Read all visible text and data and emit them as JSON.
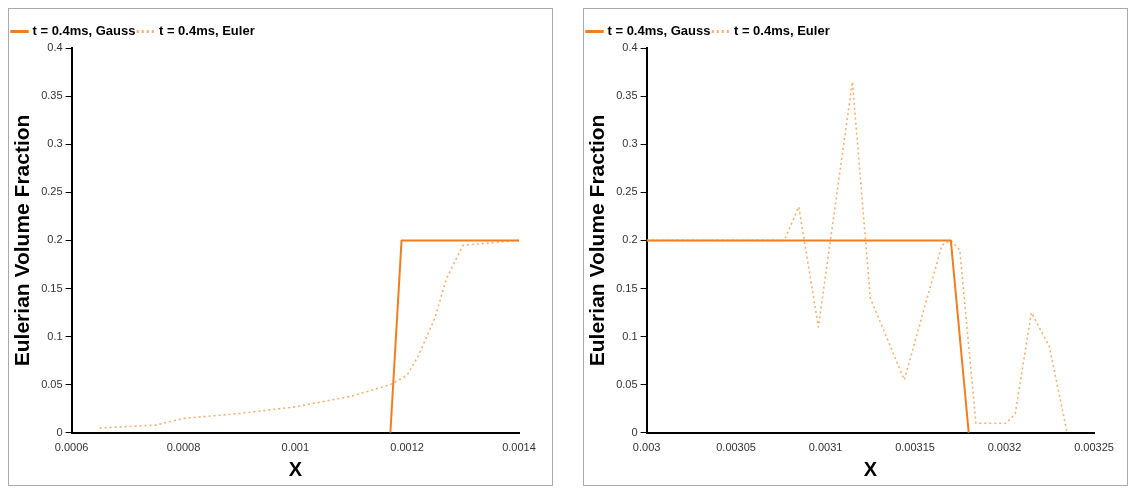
{
  "chart_data": [
    {
      "type": "line",
      "xlabel": "X",
      "ylabel": "Eulerian Volume Fraction",
      "xlim": [
        0.0006,
        0.0014
      ],
      "ylim": [
        0,
        0.4
      ],
      "xticks": [
        0.0006,
        0.0008,
        0.001,
        0.0012,
        0.0014
      ],
      "yticks": [
        0,
        0.05,
        0.1,
        0.15,
        0.2,
        0.25,
        0.3,
        0.35,
        0.4
      ],
      "grid": false,
      "legend": "top left",
      "marker": "none",
      "series": [
        {
          "name": "t = 0.4ms, Gauss",
          "color": "#f07d1e",
          "line_style": "solid",
          "x": [
            0.00117,
            0.00119,
            0.0014
          ],
          "values": [
            0,
            0.2,
            0.2
          ]
        },
        {
          "name": "t = 0.4ms, Euler",
          "color": "#f5b070",
          "line_style": "dotted",
          "x": [
            0.00065,
            0.00075,
            0.0008,
            0.0009,
            0.001,
            0.0011,
            0.00117,
            0.0012,
            0.00122,
            0.00125,
            0.00127,
            0.0013,
            0.0014
          ],
          "values": [
            0.005,
            0.008,
            0.015,
            0.02,
            0.027,
            0.038,
            0.05,
            0.06,
            0.08,
            0.12,
            0.16,
            0.195,
            0.2
          ]
        }
      ]
    },
    {
      "type": "line",
      "xlabel": "X",
      "ylabel": "Eulerian Volume Fraction",
      "xlim": [
        0.003,
        0.00325
      ],
      "ylim": [
        0,
        0.4
      ],
      "xticks": [
        0.003,
        0.00305,
        0.0031,
        0.00315,
        0.0032,
        0.00325
      ],
      "yticks": [
        0,
        0.05,
        0.1,
        0.15,
        0.2,
        0.25,
        0.3,
        0.35,
        0.4
      ],
      "grid": false,
      "legend": "top left",
      "marker": "none",
      "series": [
        {
          "name": "t = 0.4ms, Gauss",
          "color": "#f07d1e",
          "line_style": "solid",
          "x": [
            0.003,
            0.00317,
            0.00318
          ],
          "values": [
            0.2,
            0.2,
            0
          ]
        },
        {
          "name": "t = 0.4ms, Euler",
          "color": "#f5b070",
          "line_style": "dotted",
          "x": [
            0.003,
            0.003077,
            0.003085,
            0.003096,
            0.003115,
            0.003125,
            0.003144,
            0.003165,
            0.00317,
            0.003175,
            0.003184,
            0.003201,
            0.003206,
            0.003215,
            0.003225,
            0.003235
          ],
          "values": [
            0.2,
            0.2,
            0.235,
            0.11,
            0.365,
            0.14,
            0.055,
            0.195,
            0.2,
            0.19,
            0.01,
            0.01,
            0.02,
            0.125,
            0.09,
            0
          ]
        }
      ]
    }
  ]
}
